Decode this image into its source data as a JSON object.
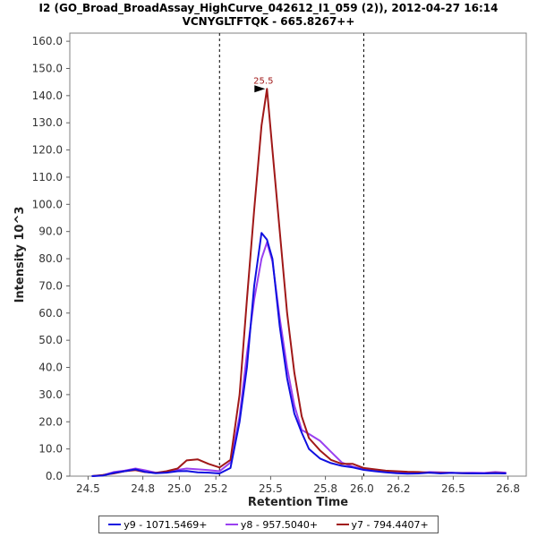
{
  "chart_data": {
    "type": "line",
    "title": "I2 (GO_Broad_BroadAssay_HighCurve_042612_I1_059 (2)), 2012-04-27 16:14",
    "subtitle": "VCNYGLTFTQK - 665.8267++",
    "xlabel": "Retention Time",
    "ylabel": "Intensity 10^3",
    "xlim": [
      24.4,
      26.9
    ],
    "ylim": [
      0,
      163
    ],
    "xticks": [
      24.5,
      24.8,
      25.0,
      25.2,
      25.5,
      25.8,
      26.0,
      26.2,
      26.5,
      26.8
    ],
    "xtick_labels": [
      "24.5",
      "24.8",
      "25.0",
      "25.2",
      "25.5",
      "25.8",
      "26.0",
      "26.2",
      "26.5",
      "26.8"
    ],
    "yticks": [
      0,
      10,
      20,
      30,
      40,
      50,
      60,
      70,
      80,
      90,
      100,
      110,
      120,
      130,
      140,
      150,
      160
    ],
    "ytick_labels": [
      "0.0",
      "10.0",
      "20.0",
      "30.0",
      "40.0",
      "50.0",
      "60.0",
      "70.0",
      "80.0",
      "90.0",
      "100.0",
      "110.0",
      "120.0",
      "130.0",
      "140.0",
      "150.0",
      "160.0"
    ],
    "vlines": [
      25.22,
      26.01
    ],
    "annotation": {
      "label": "25.5",
      "x": 25.48,
      "y": 142.5
    },
    "x": [
      24.52,
      24.58,
      24.64,
      24.7,
      24.76,
      24.81,
      24.87,
      24.93,
      24.99,
      25.04,
      25.1,
      25.16,
      25.22,
      25.28,
      25.33,
      25.37,
      25.41,
      25.45,
      25.48,
      25.51,
      25.55,
      25.59,
      25.63,
      25.67,
      25.71,
      25.77,
      25.83,
      25.89,
      25.95,
      26.01,
      26.07,
      26.13,
      26.19,
      26.25,
      26.31,
      26.37,
      26.43,
      26.49,
      26.55,
      26.61,
      26.67,
      26.73,
      26.79
    ],
    "series": [
      {
        "name": "y9 - 1071.5469+",
        "color": "#1010e0",
        "values": [
          0.0,
          0.2,
          1.2,
          1.8,
          2.5,
          1.6,
          1.1,
          1.3,
          1.8,
          1.9,
          1.4,
          1.3,
          1.0,
          3.0,
          20.0,
          40.0,
          70.0,
          89.5,
          87.0,
          80.0,
          55.0,
          36.0,
          23.0,
          16.0,
          10.0,
          6.5,
          4.8,
          3.8,
          3.2,
          2.3,
          1.8,
          1.4,
          1.1,
          0.9,
          1.0,
          1.3,
          1.0,
          1.2,
          1.1,
          1.0,
          1.0,
          1.1,
          1.0
        ]
      },
      {
        "name": "y8 - 957.5040+",
        "color": "#9a40f0",
        "values": [
          0.0,
          0.3,
          1.5,
          2.0,
          2.8,
          2.2,
          1.3,
          1.5,
          2.3,
          2.8,
          2.5,
          2.2,
          1.8,
          5.0,
          22.0,
          45.0,
          65.0,
          80.0,
          86.0,
          79.0,
          58.0,
          40.0,
          26.0,
          17.0,
          15.5,
          13.0,
          9.0,
          5.0,
          3.5,
          2.5,
          2.2,
          1.8,
          1.5,
          1.3,
          1.2,
          1.5,
          1.4,
          1.3,
          1.2,
          1.3,
          1.2,
          1.5,
          1.3
        ]
      },
      {
        "name": "y7 - 794.4407+",
        "color": "#a01818",
        "values": [
          0.0,
          0.4,
          1.0,
          1.8,
          2.2,
          1.5,
          1.2,
          1.8,
          2.8,
          5.8,
          6.2,
          4.5,
          3.2,
          6.0,
          30.0,
          65.0,
          98.0,
          129.0,
          142.5,
          120.0,
          90.0,
          60.0,
          38.0,
          22.0,
          14.0,
          9.5,
          6.0,
          4.5,
          4.5,
          3.0,
          2.5,
          2.0,
          1.8,
          1.6,
          1.5,
          1.3,
          1.2,
          1.2,
          1.1,
          1.0,
          1.0,
          1.2,
          1.0
        ]
      }
    ]
  }
}
